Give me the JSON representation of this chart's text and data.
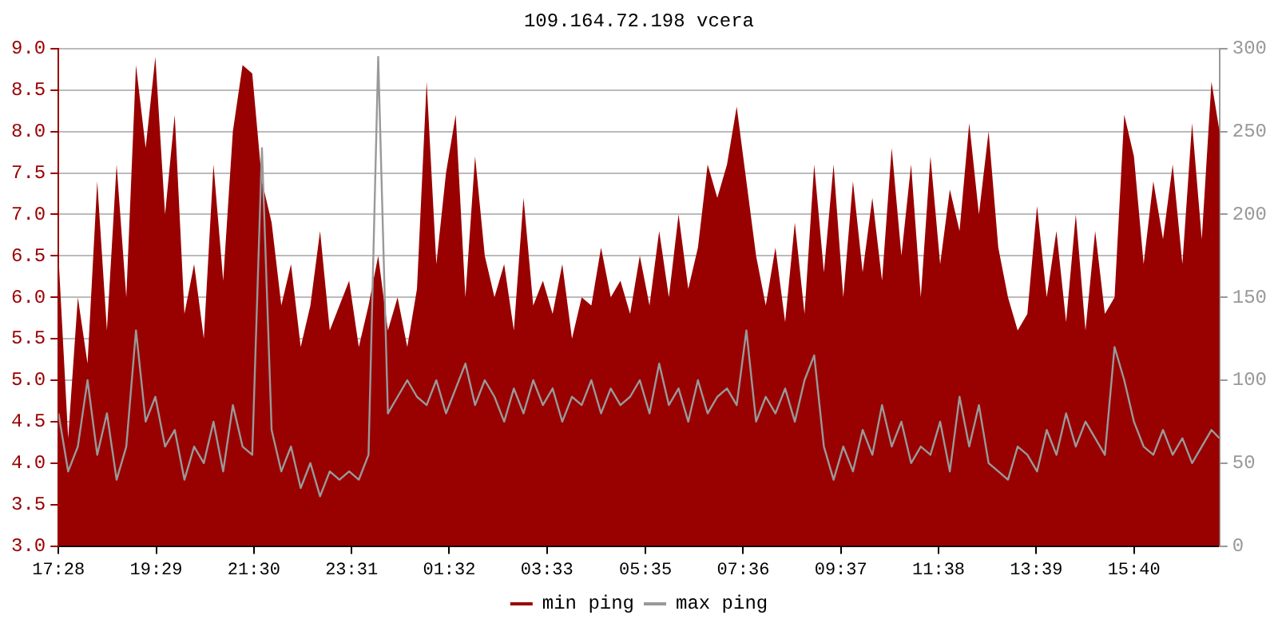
{
  "chart_data": {
    "type": "area",
    "title": "109.164.72.198 vcera",
    "x": [
      "--01-01T17:28",
      "--01-01T17:40",
      "--01-01T17:52",
      "--01-01T18:04",
      "--01-01T18:16",
      "--01-01T18:28",
      "--01-01T18:40",
      "--01-01T18:52",
      "--01-01T19:04",
      "--01-01T19:16",
      "--01-01T19:28",
      "--01-01T19:40",
      "--01-01T19:52",
      "--01-01T20:04",
      "--01-01T20:16",
      "--01-01T20:28",
      "--01-01T20:40",
      "--01-01T20:52",
      "--01-01T21:04",
      "--01-01T21:16",
      "--01-01T21:28",
      "--01-01T21:40",
      "--01-01T21:52",
      "--01-01T22:04",
      "--01-01T22:16",
      "--01-01T22:28",
      "--01-01T22:40",
      "--01-01T22:52",
      "--01-01T23:04",
      "--01-01T23:16",
      "--01-01T23:28",
      "--01-01T23:40",
      "--01-01T23:52",
      "--01-02T00:04",
      "--01-02T00:16",
      "--01-02T00:28",
      "--01-02T00:40",
      "--01-02T00:52",
      "--01-02T01:04",
      "--01-02T01:16",
      "--01-02T01:28",
      "--01-02T01:40",
      "--01-02T01:52",
      "--01-02T02:04",
      "--01-02T02:16",
      "--01-02T02:28",
      "--01-02T02:40",
      "--01-02T02:52",
      "--01-02T03:04",
      "--01-02T03:16",
      "--01-02T03:28",
      "--01-02T03:40",
      "--01-02T03:52",
      "--01-02T04:04",
      "--01-02T04:16",
      "--01-02T04:28",
      "--01-02T04:40",
      "--01-02T04:52",
      "--01-02T05:04",
      "--01-02T05:16",
      "--01-02T05:28",
      "--01-02T05:40",
      "--01-02T05:52",
      "--01-02T06:04",
      "--01-02T06:16",
      "--01-02T06:28",
      "--01-02T06:40",
      "--01-02T06:52",
      "--01-02T07:04",
      "--01-02T07:16",
      "--01-02T07:28",
      "--01-02T07:40",
      "--01-02T07:52",
      "--01-02T08:04",
      "--01-02T08:16",
      "--01-02T08:28",
      "--01-02T08:40",
      "--01-02T08:52",
      "--01-02T09:04",
      "--01-02T09:16",
      "--01-02T09:28",
      "--01-02T09:40",
      "--01-02T09:52",
      "--01-02T10:04",
      "--01-02T10:16",
      "--01-02T10:28",
      "--01-02T10:40",
      "--01-02T10:52",
      "--01-02T11:04",
      "--01-02T11:16",
      "--01-02T11:28",
      "--01-02T11:40",
      "--01-02T11:52",
      "--01-02T12:04",
      "--01-02T12:16",
      "--01-02T12:28",
      "--01-02T12:40",
      "--01-02T12:52",
      "--01-02T13:04",
      "--01-02T13:16",
      "--01-02T13:28",
      "--01-02T13:40",
      "--01-02T13:52",
      "--01-02T14:04",
      "--01-02T14:16",
      "--01-02T14:28",
      "--01-02T14:40",
      "--01-02T14:52",
      "--01-02T15:04",
      "--01-02T15:16",
      "--01-02T15:28",
      "--01-02T15:40",
      "--01-02T15:52",
      "--01-02T16:04",
      "--01-02T16:16",
      "--01-02T16:28",
      "--01-02T16:40",
      "--01-02T16:52",
      "--01-02T17:04",
      "--01-02T17:16",
      "--01-02T17:26"
    ],
    "series": [
      {
        "name": "min ping",
        "color": "#990000",
        "values": [
          6.5,
          4.3,
          6.0,
          5.2,
          7.4,
          5.6,
          7.6,
          6.0,
          8.8,
          7.8,
          8.9,
          7.0,
          8.2,
          5.8,
          6.4,
          5.5,
          7.6,
          6.2,
          8.0,
          8.8,
          8.7,
          7.4,
          6.9,
          5.9,
          6.4,
          5.4,
          5.9,
          6.8,
          5.6,
          5.9,
          6.2,
          5.4,
          5.9,
          6.5,
          5.6,
          6.0,
          5.4,
          6.1,
          8.6,
          6.4,
          7.5,
          8.2,
          6.0,
          7.7,
          6.5,
          6.0,
          6.4,
          5.6,
          7.2,
          5.9,
          6.2,
          5.8,
          6.4,
          5.5,
          6.0,
          5.9,
          6.6,
          6.0,
          6.2,
          5.8,
          6.5,
          5.9,
          6.8,
          6.0,
          7.0,
          6.1,
          6.6,
          7.6,
          7.2,
          7.6,
          8.3,
          7.4,
          6.5,
          5.9,
          6.6,
          5.7,
          6.9,
          5.8,
          7.6,
          6.3,
          7.6,
          6.0,
          7.4,
          6.3,
          7.2,
          6.2,
          7.8,
          6.5,
          7.6,
          6.0,
          7.7,
          6.4,
          7.3,
          6.8,
          8.1,
          7.0,
          8.0,
          6.6,
          6.0,
          5.6,
          5.8,
          7.1,
          6.0,
          6.8,
          5.7,
          7.0,
          5.6,
          6.8,
          5.8,
          6.0,
          8.2,
          7.7,
          6.4,
          7.4,
          6.7,
          7.6,
          6.4,
          8.1,
          6.7,
          8.6,
          8.0
        ]
      },
      {
        "name": "max ping",
        "type": "line",
        "axis": "y2",
        "color": "#999999",
        "values": [
          80,
          45,
          60,
          100,
          55,
          80,
          40,
          60,
          130,
          75,
          90,
          60,
          70,
          40,
          60,
          50,
          75,
          45,
          85,
          60,
          55,
          240,
          70,
          45,
          60,
          35,
          50,
          30,
          45,
          40,
          45,
          40,
          55,
          295,
          80,
          90,
          100,
          90,
          85,
          100,
          80,
          95,
          110,
          85,
          100,
          90,
          75,
          95,
          80,
          100,
          85,
          95,
          75,
          90,
          85,
          100,
          80,
          95,
          85,
          90,
          100,
          80,
          110,
          85,
          95,
          75,
          100,
          80,
          90,
          95,
          85,
          130,
          75,
          90,
          80,
          95,
          75,
          100,
          115,
          60,
          40,
          60,
          45,
          70,
          55,
          85,
          60,
          75,
          50,
          60,
          55,
          75,
          45,
          90,
          60,
          85,
          50,
          45,
          40,
          60,
          55,
          45,
          70,
          55,
          80,
          60,
          75,
          65,
          55,
          120,
          100,
          75,
          60,
          55,
          70,
          55,
          65,
          50,
          60,
          70,
          65
        ]
      }
    ],
    "xlim": [
      "--01-01T17:28",
      "--01-02T17:26"
    ],
    "xticks": [
      {
        "value": "--01-01T17:28",
        "label": "17:28"
      },
      {
        "value": "--01-01T19:29",
        "label": "19:29"
      },
      {
        "value": "--01-01T21:30",
        "label": "21:30"
      },
      {
        "value": "--01-01T23:31",
        "label": "23:31"
      },
      {
        "value": "--01-02T01:32",
        "label": "01:32"
      },
      {
        "value": "--01-02T03:33",
        "label": "03:33"
      },
      {
        "value": "--01-02T05:35",
        "label": "05:35"
      },
      {
        "value": "--01-02T07:36",
        "label": "07:36"
      },
      {
        "value": "--01-02T09:37",
        "label": "09:37"
      },
      {
        "value": "--01-02T11:38",
        "label": "11:38"
      },
      {
        "value": "--01-02T13:39",
        "label": "13:39"
      },
      {
        "value": "--01-02T15:40",
        "label": "15:40"
      }
    ],
    "ylim": [
      3,
      9
    ],
    "yticks": [
      {
        "value": 3,
        "label": "3.0"
      },
      {
        "value": 3.5,
        "label": "3.5"
      },
      {
        "value": 4,
        "label": "4.0"
      },
      {
        "value": 4.5,
        "label": "4.5"
      },
      {
        "value": 5,
        "label": "5.0"
      },
      {
        "value": 5.5,
        "label": "5.5"
      },
      {
        "value": 6,
        "label": "6.0"
      },
      {
        "value": 6.5,
        "label": "6.5"
      },
      {
        "value": 7,
        "label": "7.0"
      },
      {
        "value": 7.5,
        "label": "7.5"
      },
      {
        "value": 8,
        "label": "8.0"
      },
      {
        "value": 8.5,
        "label": "8.5"
      },
      {
        "value": 9,
        "label": "9.0"
      }
    ],
    "y2lim": [
      0,
      300
    ],
    "y2ticks": [
      0,
      50,
      100,
      150,
      200,
      250,
      300
    ],
    "grid": "y",
    "legend": "bottom",
    "marker": "none"
  }
}
